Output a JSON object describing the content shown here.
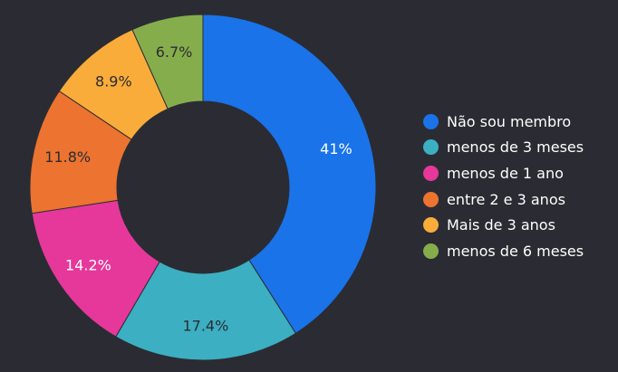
{
  "chart_data": {
    "type": "pie",
    "donut": true,
    "legend_position": "right",
    "background": "#2b2c33",
    "slices": [
      {
        "label": "Não sou membro",
        "value": 41,
        "value_label": "41%",
        "color": "#1a73e8",
        "label_color": "#ffffff"
      },
      {
        "label": "menos de 3 meses",
        "value": 17.4,
        "value_label": "17.4%",
        "color": "#3cafc2",
        "label_color": "#2b2c33"
      },
      {
        "label": "menos de 1 ano",
        "value": 14.2,
        "value_label": "14.2%",
        "color": "#e5389a",
        "label_color": "#ffffff"
      },
      {
        "label": "entre 2 e 3 anos",
        "value": 11.8,
        "value_label": "11.8%",
        "color": "#ec7330",
        "label_color": "#2b2c33"
      },
      {
        "label": "Mais de 3 anos",
        "value": 8.9,
        "value_label": "8.9%",
        "color": "#f9ac3a",
        "label_color": "#2b2c33"
      },
      {
        "label": "menos de 6 meses",
        "value": 6.7,
        "value_label": "6.7%",
        "color": "#86ad4c",
        "label_color": "#2b2c33"
      }
    ]
  }
}
